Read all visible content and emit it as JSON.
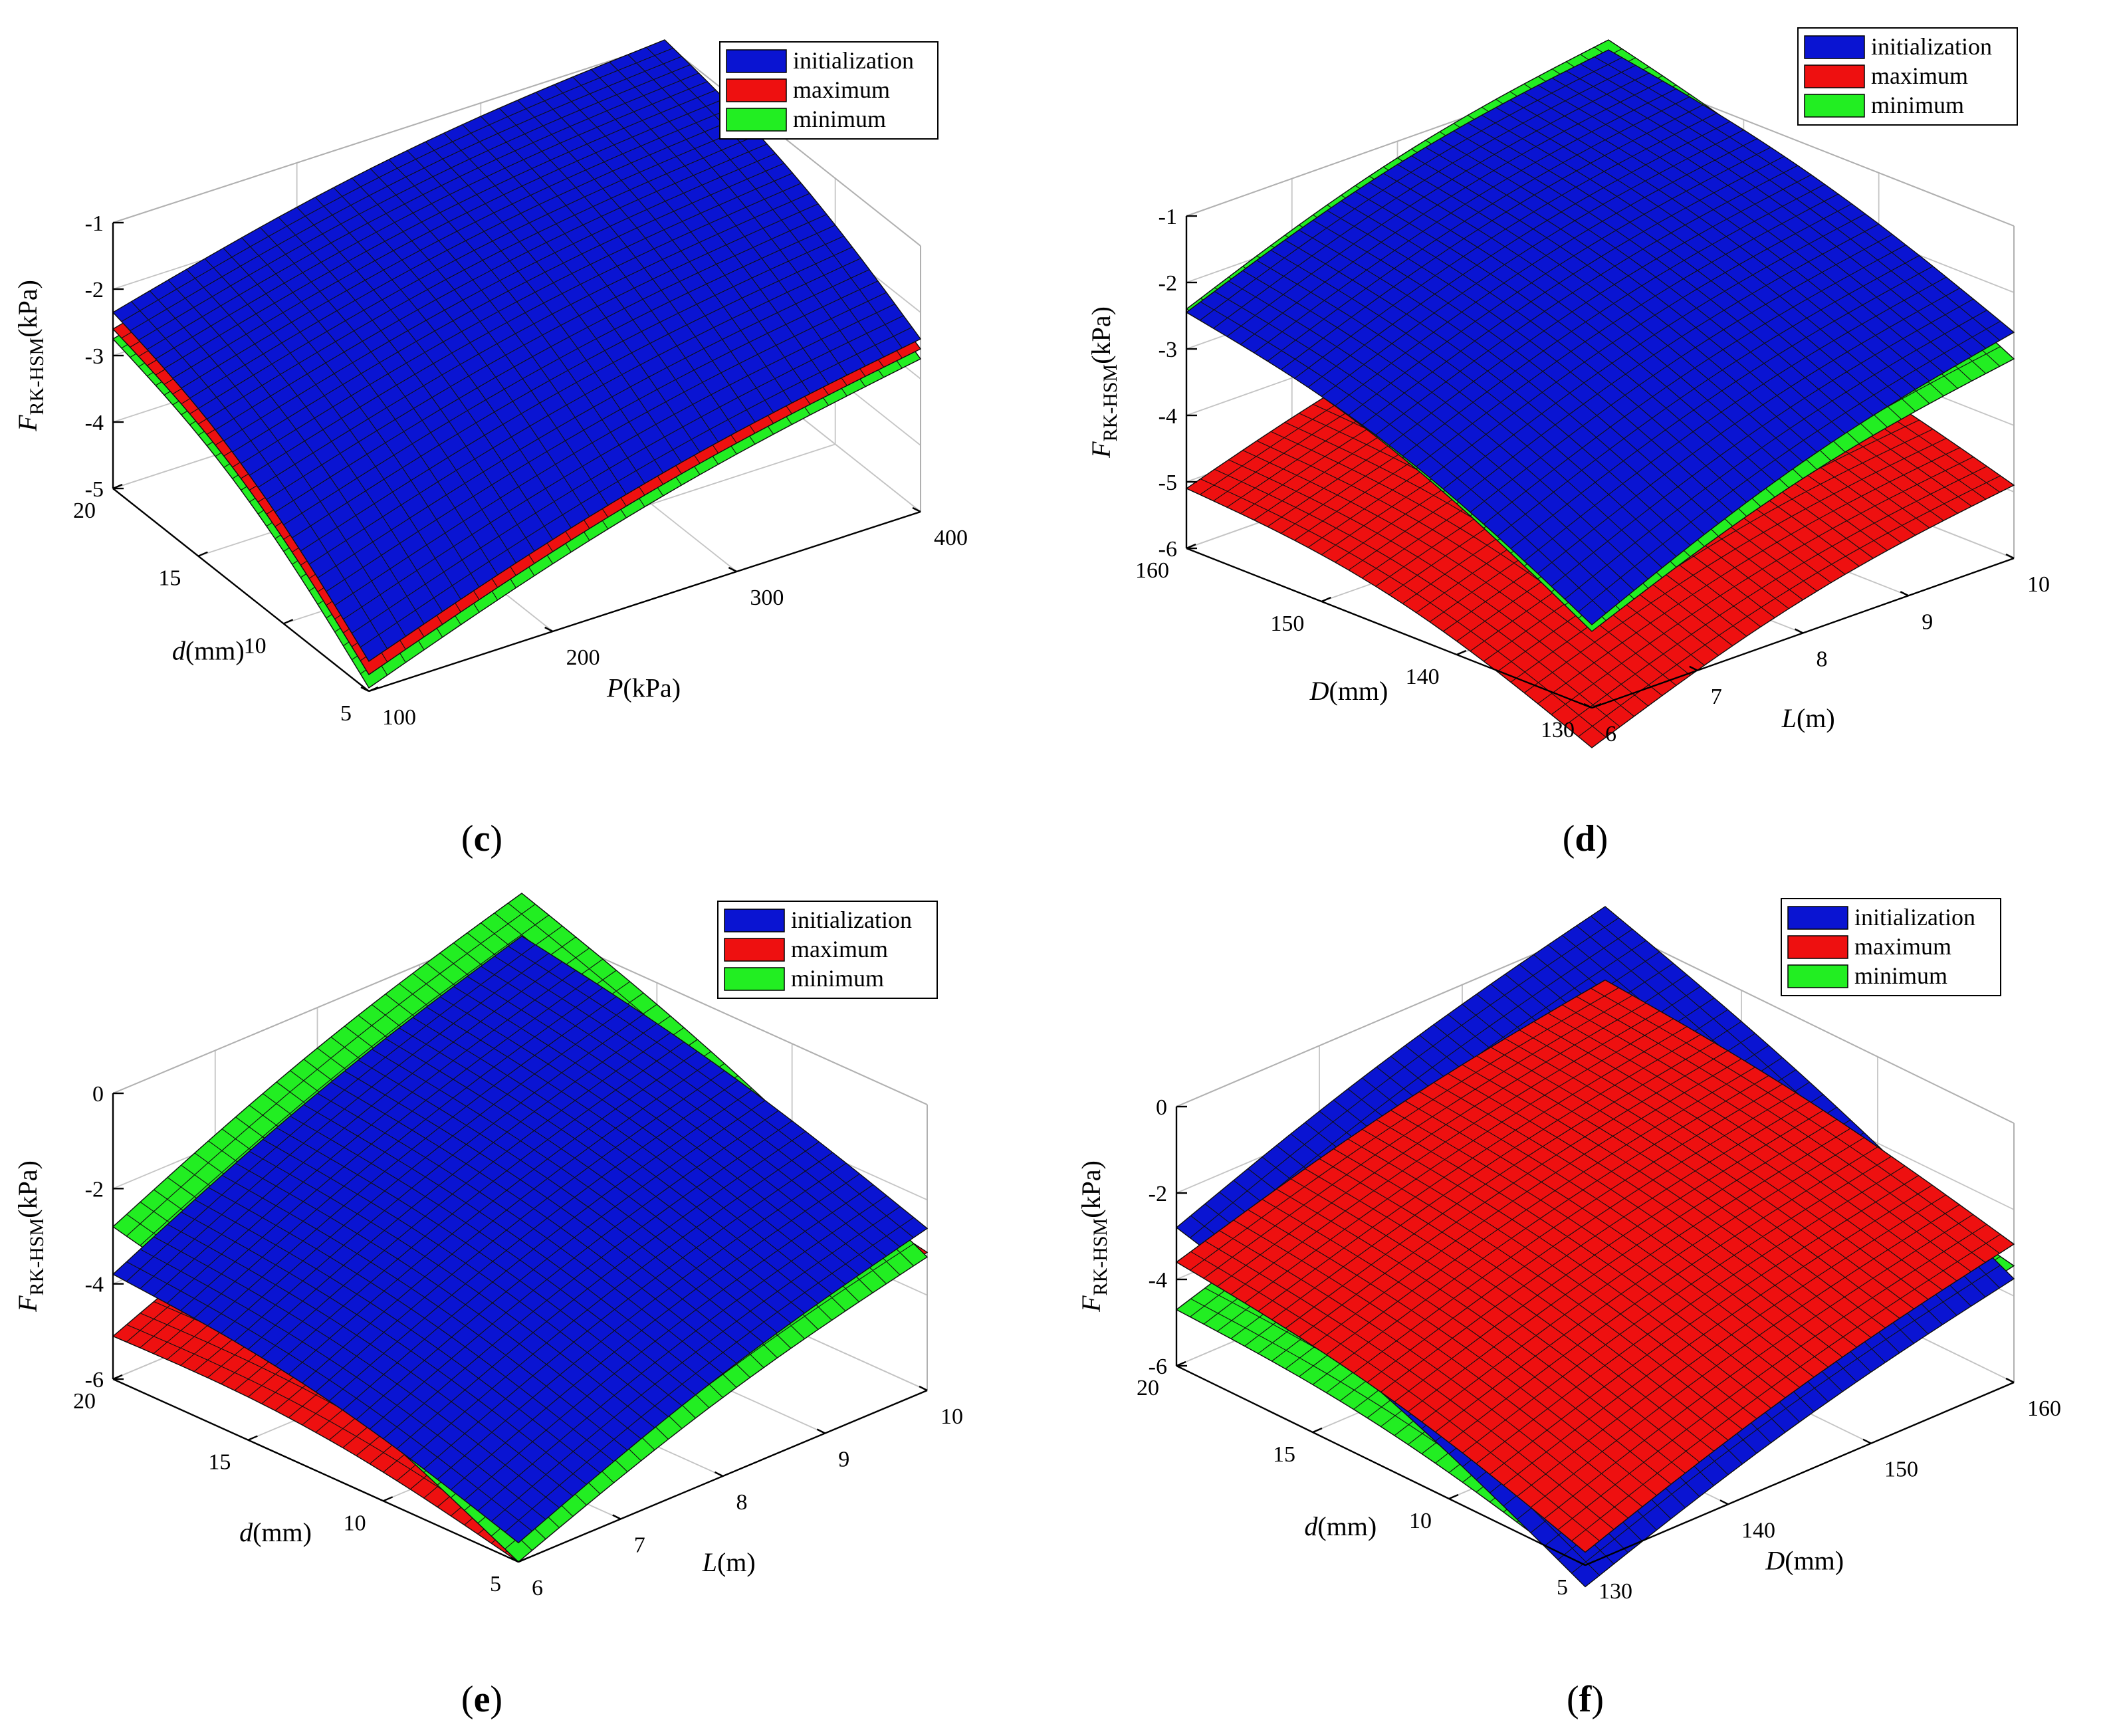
{
  "figure": {
    "legend_labels": [
      "initialization",
      "maximum",
      "minimum"
    ],
    "colors": {
      "initialization": "#0a14d2",
      "maximum": "#ee1010",
      "minimum": "#22ee22",
      "mesh": "#111111",
      "axis": "#000000",
      "grid": "#c4c4c4"
    }
  },
  "chart_data": [
    {
      "panel": "c",
      "type": "surface",
      "zlabel": "F_RK-HSM (kPa)",
      "zlabel_main": "F",
      "zlabel_sub": "RK-HSM",
      "zlabel_unit": "(kPa)",
      "zlim": [
        -5,
        -1
      ],
      "zticks": [
        "-1",
        "-2",
        "-3",
        "-4",
        "-5"
      ],
      "left_axis": {
        "label_main": "d",
        "label_unit": "(mm)",
        "range": [
          5,
          20
        ],
        "ticks": [
          "20",
          "15",
          "10",
          "5"
        ]
      },
      "right_axis": {
        "label_main": "P",
        "label_unit": "(kPa)",
        "range": [
          100,
          400
        ],
        "ticks": [
          "100",
          "200",
          "300",
          "400"
        ]
      },
      "series": [
        {
          "name": "minimum",
          "z_near_left": -2.75,
          "z_near_right": -4.95,
          "z_far_right": -2.7,
          "z_far_left": -1.3
        },
        {
          "name": "maximum",
          "z_near_left": -2.6,
          "z_near_right": -4.75,
          "z_far_right": -2.55,
          "z_far_left": -1.2
        },
        {
          "name": "initialization",
          "z_near_left": -2.35,
          "z_near_right": -4.55,
          "z_far_right": -2.4,
          "z_far_left": -0.95
        }
      ]
    },
    {
      "panel": "d",
      "type": "surface",
      "zlabel": "F_RK-HSM (kPa)",
      "zlabel_main": "F",
      "zlabel_sub": "RK-HSM",
      "zlabel_unit": "(kPa)",
      "zlim": [
        -6,
        -1
      ],
      "zticks": [
        "-1",
        "-2",
        "-3",
        "-4",
        "-5",
        "-6"
      ],
      "left_axis": {
        "label_main": "D",
        "label_unit": "(mm)",
        "range": [
          130,
          160
        ],
        "ticks": [
          "160",
          "150",
          "140",
          "130"
        ]
      },
      "right_axis": {
        "label_main": "L",
        "label_unit": "(m)",
        "range": [
          6,
          10
        ],
        "ticks": [
          "6",
          "7",
          "8",
          "9",
          "10"
        ]
      },
      "series": [
        {
          "name": "maximum",
          "z_near_left": -5.1,
          "z_near_right": -6.6,
          "z_far_right": -4.9,
          "z_far_left": -3.8
        },
        {
          "name": "minimum",
          "z_near_left": -2.4,
          "z_near_right": -4.85,
          "z_far_right": -3.0,
          "z_far_left": -0.6
        },
        {
          "name": "initialization",
          "z_near_left": -2.45,
          "z_near_right": -4.75,
          "z_far_right": -2.6,
          "z_far_left": -0.75
        }
      ]
    },
    {
      "panel": "e",
      "type": "surface",
      "zlabel": "F_RK-HSM (kPa)",
      "zlabel_main": "F",
      "zlabel_sub": "RK-HSM",
      "zlabel_unit": "(kPa)",
      "zlim": [
        -6,
        0
      ],
      "zticks": [
        "0",
        "-2",
        "-4",
        "-6"
      ],
      "left_axis": {
        "label_main": "d",
        "label_unit": "(mm)",
        "range": [
          5,
          20
        ],
        "ticks": [
          "20",
          "15",
          "10",
          "5"
        ]
      },
      "right_axis": {
        "label_main": "L",
        "label_unit": "(m)",
        "range": [
          6,
          10
        ],
        "ticks": [
          "6",
          "7",
          "8",
          "9",
          "10"
        ]
      },
      "series": [
        {
          "name": "maximum",
          "z_near_left": -5.1,
          "z_near_right": -6.0,
          "z_far_right": -3.1,
          "z_far_left": -2.2
        },
        {
          "name": "minimum",
          "z_near_left": -2.8,
          "z_near_right": -6.0,
          "z_far_right": -3.2,
          "z_far_left": 0.6
        },
        {
          "name": "initialization",
          "z_near_left": -3.8,
          "z_near_right": -5.6,
          "z_far_right": -2.6,
          "z_far_left": -0.3
        }
      ]
    },
    {
      "panel": "f",
      "type": "surface",
      "zlabel": "F_RK-HSM (kPa)",
      "zlabel_main": "F",
      "zlabel_sub": "RK-HSM",
      "zlabel_unit": "(kPa)",
      "zlim": [
        -6,
        0
      ],
      "zticks": [
        "0",
        "-2",
        "-4",
        "-6"
      ],
      "left_axis": {
        "label_main": "d",
        "label_unit": "(mm)",
        "range": [
          5,
          20
        ],
        "ticks": [
          "20",
          "15",
          "10",
          "5"
        ]
      },
      "right_axis": {
        "label_main": "D",
        "label_unit": "(mm)",
        "range": [
          130,
          160
        ],
        "ticks": [
          "130",
          "140",
          "150",
          "160"
        ]
      },
      "series": [
        {
          "name": "minimum",
          "z_near_left": -4.7,
          "z_near_right": -6.2,
          "z_far_right": -3.3,
          "z_far_left": -2.2
        },
        {
          "name": "initialization",
          "z_near_left": -2.8,
          "z_near_right": -6.5,
          "z_far_right": -3.6,
          "z_far_left": 0.4
        },
        {
          "name": "maximum",
          "z_near_left": -3.6,
          "z_near_right": -5.7,
          "z_far_right": -2.8,
          "z_far_left": -1.3
        }
      ]
    }
  ]
}
